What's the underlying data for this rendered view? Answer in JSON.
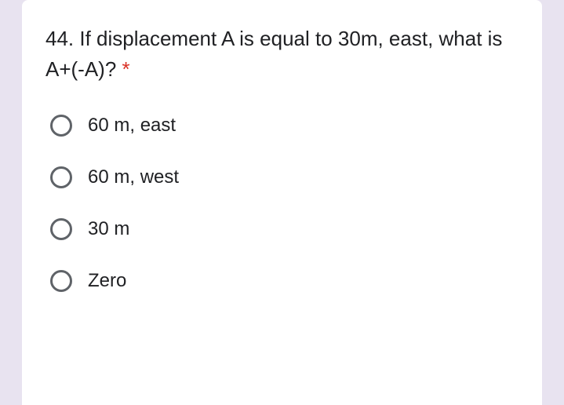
{
  "question": {
    "text": "44. If displacement A is equal to 30m, east, what is A+(-A)? ",
    "required_marker": "*",
    "required_color": "#d93025"
  },
  "options": [
    {
      "label": "60 m, east"
    },
    {
      "label": "60 m, west"
    },
    {
      "label": "30 m"
    },
    {
      "label": "Zero"
    }
  ],
  "styling": {
    "background_color": "#e8e3f0",
    "card_background": "#ffffff",
    "text_color": "#202124",
    "radio_border_color": "#5f6368",
    "question_fontsize": 26,
    "option_fontsize": 24
  }
}
